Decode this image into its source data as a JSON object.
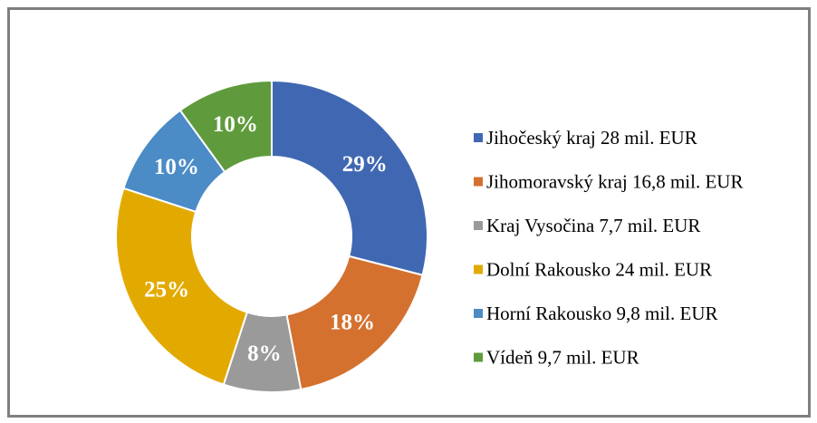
{
  "chart_data": {
    "type": "pie",
    "donut": true,
    "categories": [
      "Jihočeský kraj 28 mil. EUR",
      "Jihomoravský kraj 16,8 mil. EUR",
      "Kraj Vysočina 7,7 mil. EUR",
      "Dolní Rakousko 24 mil. EUR",
      "Horní Rakousko 9,8 mil. EUR",
      "Vídeň 9,7 mil. EUR"
    ],
    "values": [
      29,
      18,
      8,
      25,
      10,
      10
    ],
    "value_labels": [
      "29%",
      "18%",
      "8%",
      "25%",
      "10%",
      "10%"
    ],
    "colors": [
      "#4068b2",
      "#d4712f",
      "#9a9a9a",
      "#e2aa00",
      "#4b8bc6",
      "#5f9b3c"
    ],
    "legend": "right"
  }
}
